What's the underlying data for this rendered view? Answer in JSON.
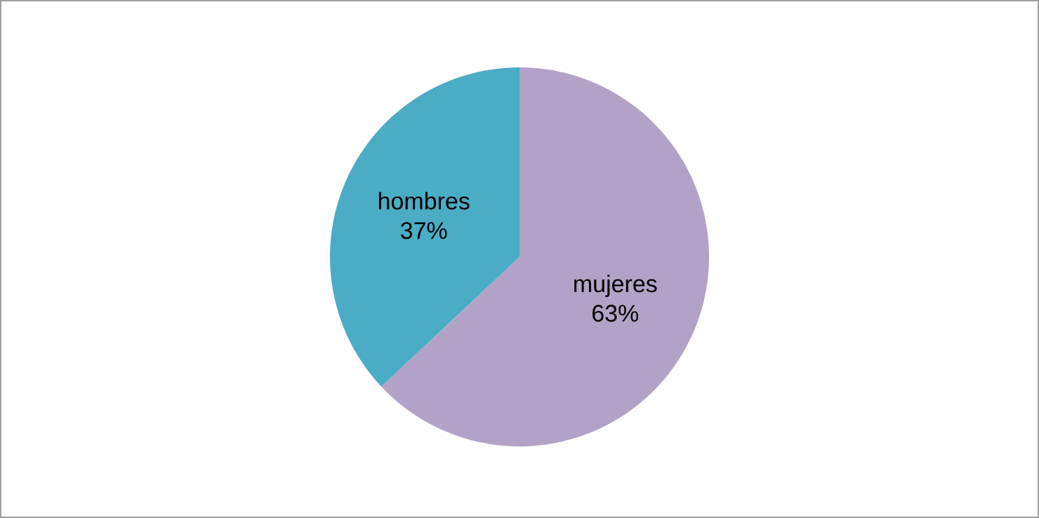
{
  "chart_data": {
    "type": "pie",
    "categories": [
      "mujeres",
      "hombres"
    ],
    "values": [
      63,
      37
    ],
    "colors": [
      "#b3a2c7",
      "#4bacc6"
    ],
    "value_labels": [
      "63%",
      "37%"
    ]
  }
}
